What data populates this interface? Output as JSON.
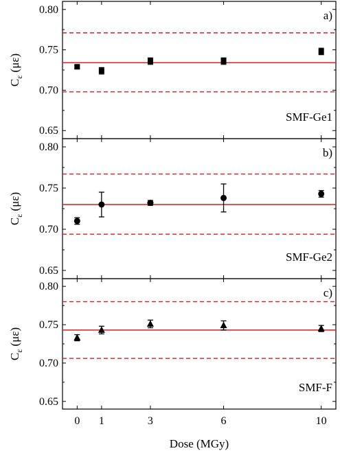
{
  "chart_data": [
    {
      "type": "scatter",
      "panel_label": "a)",
      "sample_label": "SMF-Ge1",
      "marker": "square",
      "xlabel": "Dose (MGy)",
      "ylabel_main": "C",
      "ylabel_sub": "ε",
      "ylabel_unit": " (με)",
      "x_ticks": [
        0,
        1,
        3,
        6,
        10
      ],
      "y_ticks": [
        "0.65",
        "0.70",
        "0.75",
        "0.80"
      ],
      "ylim": [
        0.64,
        0.81
      ],
      "x": [
        0,
        1,
        3,
        6,
        10
      ],
      "values": [
        0.729,
        0.724,
        0.736,
        0.736,
        0.748
      ],
      "errors": [
        0.002,
        0.004,
        0.004,
        0.004,
        0.004
      ],
      "reference_line": 0.734,
      "bounds": [
        0.698,
        0.771
      ]
    },
    {
      "type": "scatter",
      "panel_label": "b)",
      "sample_label": "SMF-Ge2",
      "marker": "circle",
      "xlabel": "Dose (MGy)",
      "ylabel_main": "C",
      "ylabel_sub": "ε",
      "ylabel_unit": " (με)",
      "x_ticks": [
        0,
        1,
        3,
        6,
        10
      ],
      "y_ticks": [
        "0.65",
        "0.70",
        "0.75",
        "0.80"
      ],
      "ylim": [
        0.64,
        0.81
      ],
      "x": [
        0,
        1,
        3,
        6,
        10
      ],
      "values": [
        0.71,
        0.73,
        0.732,
        0.738,
        0.743
      ],
      "errors": [
        0.004,
        0.015,
        0.003,
        0.017,
        0.004
      ],
      "reference_line": 0.73,
      "bounds": [
        0.694,
        0.767
      ]
    },
    {
      "type": "scatter",
      "panel_label": "c)",
      "sample_label": "SMF-F",
      "marker": "triangle",
      "xlabel": "Dose (MGy)",
      "ylabel_main": "C",
      "ylabel_sub": "ε",
      "ylabel_unit": " (με)",
      "x_ticks": [
        0,
        1,
        3,
        6,
        10
      ],
      "y_ticks": [
        "0.65",
        "0.70",
        "0.75",
        "0.80"
      ],
      "ylim": [
        0.64,
        0.81
      ],
      "x": [
        0,
        1,
        3,
        6,
        10
      ],
      "values": [
        0.733,
        0.743,
        0.751,
        0.749,
        0.745
      ],
      "errors": [
        0.004,
        0.005,
        0.005,
        0.006,
        0.004
      ],
      "reference_line": 0.743,
      "bounds": [
        0.706,
        0.78
      ]
    }
  ]
}
